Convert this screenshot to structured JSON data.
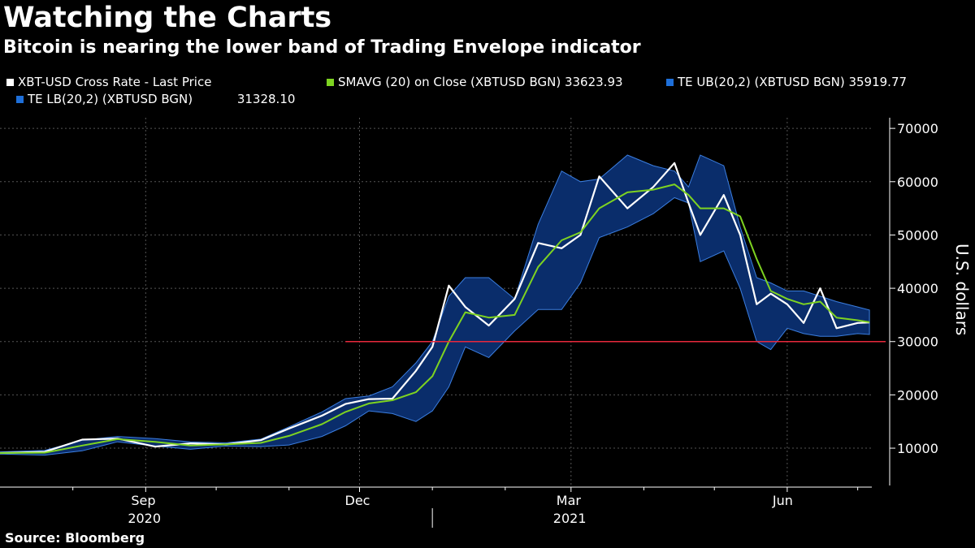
{
  "header": {
    "title": "Watching the Charts",
    "subtitle": "Bitcoin is nearing the lower band of Trading Envelope indicator"
  },
  "legend": [
    {
      "label": "XBT-USD Cross Rate - Last Price",
      "value": "",
      "color": "#ffffff"
    },
    {
      "label": "SMAVG (20)  on Close (XBTUSD BGN)",
      "value": "33623.93",
      "color": "#7ed321"
    },
    {
      "label": "TE UB(20,2) (XBTUSD BGN)",
      "value": "35919.77",
      "color": "#1e6fd9"
    },
    {
      "label": "TE LB(20,2) (XBTUSD BGN)",
      "value": "31328.10",
      "color": "#1e6fd9"
    }
  ],
  "footer": {
    "source": "Source:  Bloomberg"
  },
  "chart_data": {
    "type": "line",
    "title": "Watching the Charts",
    "subtitle": "Bitcoin is nearing the lower band of Trading Envelope indicator",
    "ylabel": "U.S. dollars",
    "ylim": [
      3000,
      72000
    ],
    "yticks": [
      10000,
      20000,
      30000,
      40000,
      50000,
      60000,
      70000
    ],
    "x_month_labels": [
      "Sep",
      "Dec",
      "Mar",
      "Jun"
    ],
    "x_year_labels": [
      "2020",
      "2021"
    ],
    "xlim": [
      "2020-07-01",
      "2021-07-07"
    ],
    "x_label_dates": [
      "2020-09-01",
      "2020-12-01",
      "2021-03-01",
      "2021-06-01"
    ],
    "x_year_label_dates": [
      "2020-09-01",
      "2021-03-01"
    ],
    "x_minor_tick_dates": [
      "2020-08-01",
      "2020-10-01",
      "2020-11-01",
      "2021-01-01",
      "2021-02-01",
      "2021-04-01",
      "2021-05-01",
      "2021-07-01"
    ],
    "year_divider_date": "2021-01-01",
    "grid": true,
    "reference_line": {
      "value": 30000,
      "color": "#e8283c",
      "start": "2020-11-25"
    },
    "colors": {
      "price": "#ffffff",
      "sma": "#7ed321",
      "envelope": "#0a2d6b",
      "envelope_edge": "#3b7ee0",
      "grid": "#555555"
    },
    "x": [
      "2020-07-01",
      "2020-07-20",
      "2020-08-05",
      "2020-08-20",
      "2020-09-05",
      "2020-09-20",
      "2020-10-05",
      "2020-10-20",
      "2020-11-01",
      "2020-11-15",
      "2020-11-25",
      "2020-12-05",
      "2020-12-15",
      "2020-12-25",
      "2021-01-01",
      "2021-01-08",
      "2021-01-15",
      "2021-01-25",
      "2021-02-05",
      "2021-02-15",
      "2021-02-25",
      "2021-03-05",
      "2021-03-13",
      "2021-03-25",
      "2021-04-05",
      "2021-04-14",
      "2021-04-20",
      "2021-04-25",
      "2021-05-05",
      "2021-05-12",
      "2021-05-19",
      "2021-05-25",
      "2021-06-01",
      "2021-06-08",
      "2021-06-15",
      "2021-06-22",
      "2021-07-01",
      "2021-07-06"
    ],
    "series": [
      {
        "name": "XBT-USD Cross Rate - Last Price",
        "values": [
          9100,
          9300,
          11600,
          11800,
          10300,
          10900,
          10700,
          11500,
          13700,
          16100,
          18300,
          19200,
          19300,
          24500,
          29000,
          40500,
          36500,
          33000,
          38000,
          48500,
          47500,
          50000,
          61000,
          55000,
          59000,
          63500,
          56000,
          50000,
          57500,
          50000,
          37000,
          39000,
          37000,
          33500,
          40000,
          32500,
          33500,
          33600
        ]
      },
      {
        "name": "SMAVG (20)  on Close (XBTUSD BGN)",
        "values": [
          9100,
          9150,
          10500,
          11700,
          11200,
          10500,
          10700,
          11000,
          12300,
          14500,
          16800,
          18400,
          19000,
          20500,
          23500,
          30000,
          35500,
          34500,
          35000,
          44000,
          49000,
          50500,
          55000,
          58000,
          58500,
          59500,
          57500,
          55000,
          55000,
          53500,
          45500,
          39500,
          38000,
          37000,
          37500,
          34500,
          34000,
          33624
        ]
      },
      {
        "name": "TE UB(20,2) (XBTUSD BGN)",
        "values": [
          9300,
          9600,
          11500,
          12200,
          11800,
          11200,
          11000,
          11700,
          14000,
          16800,
          19300,
          19800,
          21500,
          26000,
          30000,
          38500,
          42000,
          42000,
          38000,
          52000,
          62000,
          60000,
          60500,
          65000,
          63000,
          62000,
          59000,
          65000,
          63000,
          51500,
          42000,
          41000,
          39500,
          39500,
          38500,
          37500,
          36500,
          35920
        ]
      },
      {
        "name": "TE LB(20,2) (XBTUSD BGN)",
        "values": [
          8900,
          8700,
          9500,
          11200,
          10400,
          9800,
          10400,
          10300,
          10600,
          12200,
          14200,
          17000,
          16500,
          15000,
          17000,
          21500,
          29000,
          27000,
          32000,
          36000,
          36000,
          41000,
          49500,
          51500,
          54000,
          57000,
          56000,
          45000,
          47000,
          40000,
          30000,
          28500,
          32500,
          31500,
          31000,
          31000,
          31500,
          31328
        ]
      }
    ]
  }
}
